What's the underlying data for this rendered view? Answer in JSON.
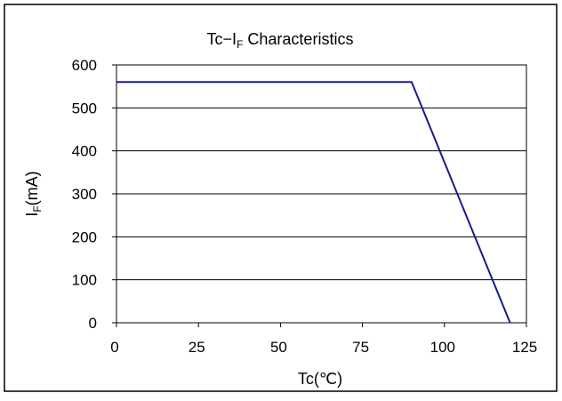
{
  "chart_data": {
    "type": "line",
    "title": "Tc−I",
    "title_sub": "F",
    "title_rest": " Characteristics",
    "xlabel": "Tc(℃)",
    "ylabel_main": "I",
    "ylabel_sub": "F",
    "ylabel_rest": "(mA)",
    "xlim": [
      0,
      125
    ],
    "ylim": [
      0,
      600
    ],
    "xticks": [
      0,
      25,
      50,
      75,
      100,
      125
    ],
    "yticks": [
      0,
      100,
      200,
      300,
      400,
      500,
      600
    ],
    "grid": "horizontal",
    "series": [
      {
        "color": "#1a1a8c",
        "points": [
          [
            0,
            560
          ],
          [
            90,
            560
          ],
          [
            120,
            0
          ]
        ]
      }
    ]
  }
}
